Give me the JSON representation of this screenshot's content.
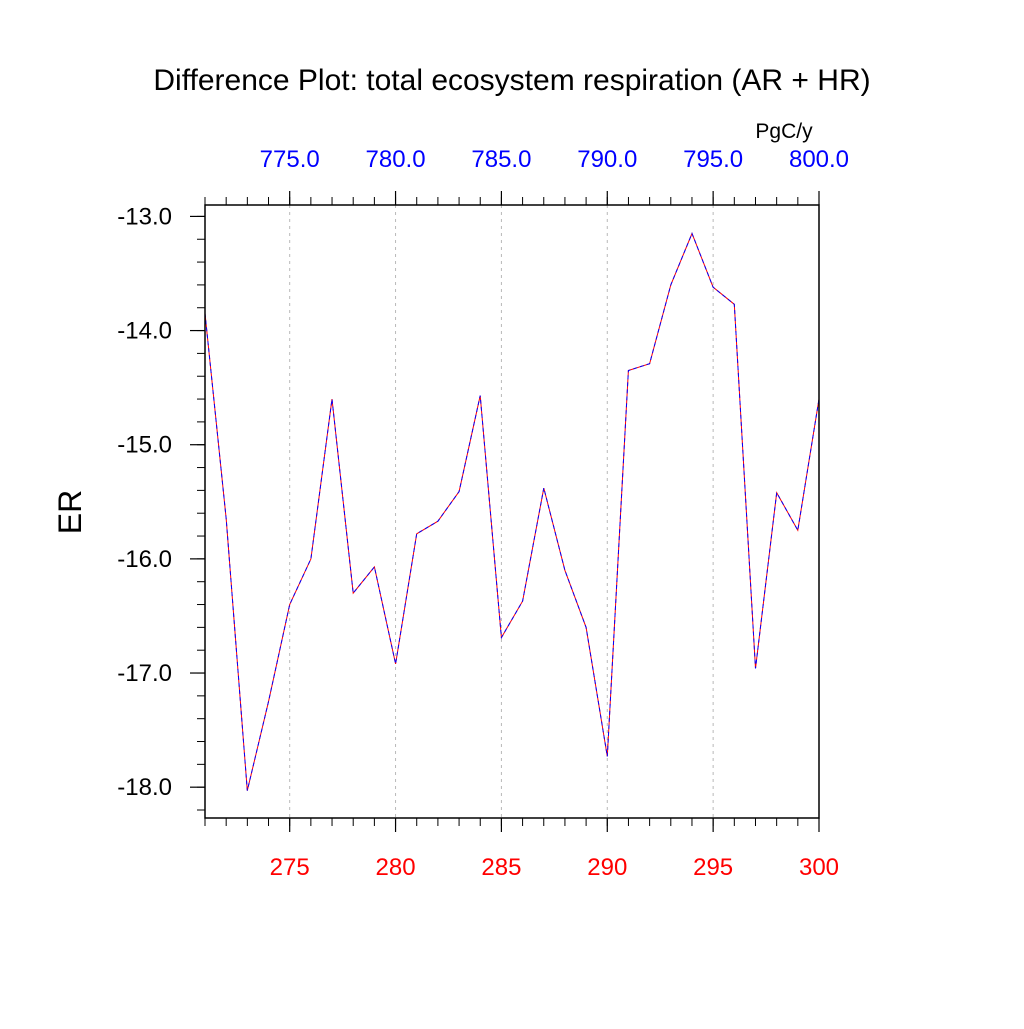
{
  "chart_data": {
    "type": "line",
    "title": "Difference Plot: total ecosystem respiration (AR + HR)",
    "ylabel": "ER",
    "units": "PgC/y",
    "xlim_bottom": [
      271,
      300
    ],
    "xlim_top": [
      771,
      800
    ],
    "ylim": [
      -18.27,
      -12.9
    ],
    "x_ticks_bottom": [
      "275",
      "280",
      "285",
      "290",
      "295",
      "300"
    ],
    "x_ticks_top": [
      "775.0",
      "780.0",
      "785.0",
      "790.0",
      "795.0",
      "800.0"
    ],
    "y_ticks": [
      "-13.0",
      "-14.0",
      "-15.0",
      "-16.0",
      "-17.0",
      "-18.0"
    ],
    "grid": "vertical dashed at major x ticks",
    "colors": {
      "bottom_axis": "#ff0000",
      "top_axis": "#0000ff",
      "line_a": "#ff0000",
      "line_b": "#0000ff"
    },
    "series": [
      {
        "x": [
          271,
          272,
          273,
          274,
          275,
          276,
          277,
          278,
          279,
          280,
          281,
          282,
          283,
          284,
          285,
          286,
          287,
          288,
          289,
          290,
          291,
          292,
          293,
          294,
          295,
          296,
          297,
          298,
          299,
          300
        ],
        "values": [
          -13.85,
          -15.65,
          -18.03,
          -17.25,
          -16.4,
          -16.0,
          -14.6,
          -16.3,
          -16.07,
          -16.92,
          -15.78,
          -15.67,
          -15.41,
          -14.57,
          -16.69,
          -16.37,
          -15.38,
          -16.1,
          -16.6,
          -17.73,
          -14.35,
          -14.29,
          -13.6,
          -13.15,
          -13.62,
          -13.77,
          -16.96,
          -15.42,
          -15.75,
          -14.6
        ]
      },
      {
        "x": [
          271,
          272,
          273,
          274,
          275,
          276,
          277,
          278,
          279,
          280,
          281,
          282,
          283,
          284,
          285,
          286,
          287,
          288,
          289,
          290,
          291,
          292,
          293,
          294,
          295,
          296,
          297,
          298,
          299,
          300
        ],
        "values": [
          -13.85,
          -15.65,
          -18.03,
          -17.25,
          -16.4,
          -16.0,
          -14.6,
          -16.3,
          -16.07,
          -16.92,
          -15.78,
          -15.67,
          -15.41,
          -14.57,
          -16.69,
          -16.37,
          -15.38,
          -16.1,
          -16.6,
          -17.73,
          -14.35,
          -14.29,
          -13.6,
          -13.15,
          -13.62,
          -13.77,
          -16.96,
          -15.42,
          -15.75,
          -14.6
        ]
      }
    ]
  }
}
